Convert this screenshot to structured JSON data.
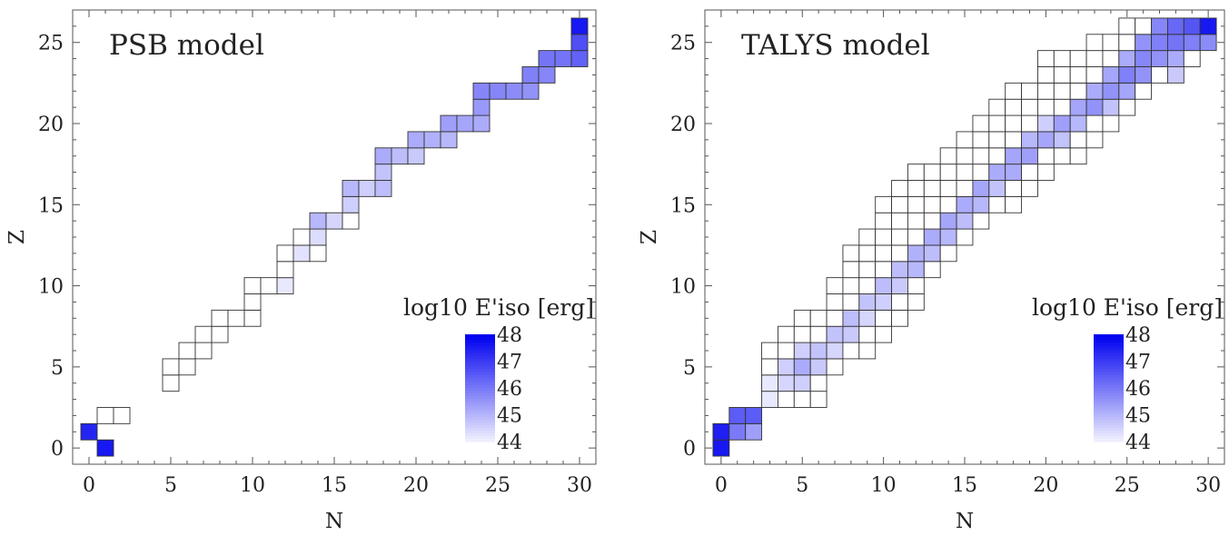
{
  "chart_data": [
    {
      "type": "heatmap",
      "title": "PSB model",
      "xlabel": "N",
      "ylabel": "Z",
      "xlim": [
        -1,
        31
      ],
      "ylim": [
        -1,
        27
      ],
      "xticks": [
        0,
        5,
        10,
        15,
        20,
        25,
        30
      ],
      "yticks": [
        0,
        5,
        10,
        15,
        20,
        25
      ],
      "legend_title": "log10 E'iso [erg]",
      "legend_placement": "bottom-right",
      "legend_ticks": [
        "48",
        "47",
        "46",
        "45",
        "44"
      ],
      "points": [
        {
          "n": 0,
          "z": 1,
          "v": 47.4
        },
        {
          "n": 1,
          "z": 0,
          "v": 47.6
        },
        {
          "n": 1,
          "z": 2,
          "v": null
        },
        {
          "n": 2,
          "z": 2,
          "v": null
        },
        {
          "n": 5,
          "z": 4,
          "v": null
        },
        {
          "n": 5,
          "z": 5,
          "v": null
        },
        {
          "n": 6,
          "z": 5,
          "v": null
        },
        {
          "n": 6,
          "z": 6,
          "v": null
        },
        {
          "n": 7,
          "z": 6,
          "v": null
        },
        {
          "n": 7,
          "z": 7,
          "v": null
        },
        {
          "n": 8,
          "z": 7,
          "v": null
        },
        {
          "n": 8,
          "z": 8,
          "v": null
        },
        {
          "n": 9,
          "z": 8,
          "v": null
        },
        {
          "n": 10,
          "z": 8,
          "v": null
        },
        {
          "n": 10,
          "z": 9,
          "v": null
        },
        {
          "n": 10,
          "z": 10,
          "v": null
        },
        {
          "n": 11,
          "z": 10,
          "v": null
        },
        {
          "n": 12,
          "z": 10,
          "v": 44.2
        },
        {
          "n": 12,
          "z": 11,
          "v": null
        },
        {
          "n": 12,
          "z": 12,
          "v": null
        },
        {
          "n": 13,
          "z": 12,
          "v": 44.3
        },
        {
          "n": 13,
          "z": 13,
          "v": null
        },
        {
          "n": 14,
          "z": 12,
          "v": null
        },
        {
          "n": 14,
          "z": 13,
          "v": 44.4
        },
        {
          "n": 14,
          "z": 14,
          "v": 45.0
        },
        {
          "n": 15,
          "z": 14,
          "v": 44.5
        },
        {
          "n": 16,
          "z": 14,
          "v": null
        },
        {
          "n": 16,
          "z": 15,
          "v": 44.6
        },
        {
          "n": 16,
          "z": 16,
          "v": 45.0
        },
        {
          "n": 17,
          "z": 16,
          "v": 44.6
        },
        {
          "n": 18,
          "z": 16,
          "v": 44.9
        },
        {
          "n": 18,
          "z": 17,
          "v": 44.8
        },
        {
          "n": 18,
          "z": 18,
          "v": 45.2
        },
        {
          "n": 19,
          "z": 18,
          "v": 44.9
        },
        {
          "n": 20,
          "z": 18,
          "v": 44.7
        },
        {
          "n": 20,
          "z": 19,
          "v": 45.2
        },
        {
          "n": 21,
          "z": 19,
          "v": 45.1
        },
        {
          "n": 22,
          "z": 19,
          "v": 45.0
        },
        {
          "n": 22,
          "z": 20,
          "v": 45.4
        },
        {
          "n": 23,
          "z": 20,
          "v": 45.3
        },
        {
          "n": 24,
          "z": 20,
          "v": 45.2
        },
        {
          "n": 24,
          "z": 21,
          "v": 45.5
        },
        {
          "n": 24,
          "z": 22,
          "v": 45.8
        },
        {
          "n": 25,
          "z": 22,
          "v": 45.8
        },
        {
          "n": 26,
          "z": 22,
          "v": 45.7
        },
        {
          "n": 27,
          "z": 22,
          "v": 45.6
        },
        {
          "n": 27,
          "z": 23,
          "v": 45.9
        },
        {
          "n": 28,
          "z": 23,
          "v": 45.8
        },
        {
          "n": 28,
          "z": 24,
          "v": 46.1
        },
        {
          "n": 29,
          "z": 24,
          "v": 46.1
        },
        {
          "n": 30,
          "z": 24,
          "v": 46.4
        },
        {
          "n": 30,
          "z": 25,
          "v": 46.7
        },
        {
          "n": 30,
          "z": 26,
          "v": 47.6
        }
      ]
    },
    {
      "type": "heatmap",
      "title": "TALYS model",
      "xlabel": "N",
      "ylabel": "Z",
      "xlim": [
        -1,
        31
      ],
      "ylim": [
        -1,
        27
      ],
      "xticks": [
        0,
        5,
        10,
        15,
        20,
        25,
        30
      ],
      "yticks": [
        0,
        5,
        10,
        15,
        20,
        25
      ],
      "legend_title": "log10 E'iso [erg]",
      "legend_placement": "bottom-right",
      "legend_ticks": [
        "48",
        "47",
        "46",
        "45",
        "44"
      ],
      "rows": [
        {
          "z": 0,
          "n_min": 0,
          "n_max": 0
        },
        {
          "z": 1,
          "n_min": 0,
          "n_max": 2
        },
        {
          "z": 2,
          "n_min": 1,
          "n_max": 2
        },
        {
          "z": 3,
          "n_min": 3,
          "n_max": 6
        },
        {
          "z": 4,
          "n_min": 3,
          "n_max": 6
        },
        {
          "z": 5,
          "n_min": 3,
          "n_max": 7
        },
        {
          "z": 6,
          "n_min": 3,
          "n_max": 9
        },
        {
          "z": 7,
          "n_min": 4,
          "n_max": 10
        },
        {
          "z": 8,
          "n_min": 5,
          "n_max": 11
        },
        {
          "z": 9,
          "n_min": 7,
          "n_max": 12
        },
        {
          "z": 10,
          "n_min": 7,
          "n_max": 12
        },
        {
          "z": 11,
          "n_min": 8,
          "n_max": 13
        },
        {
          "z": 12,
          "n_min": 8,
          "n_max": 14
        },
        {
          "z": 13,
          "n_min": 9,
          "n_max": 15
        },
        {
          "z": 14,
          "n_min": 10,
          "n_max": 16
        },
        {
          "z": 15,
          "n_min": 10,
          "n_max": 18
        },
        {
          "z": 16,
          "n_min": 11,
          "n_max": 19
        },
        {
          "z": 17,
          "n_min": 12,
          "n_max": 20
        },
        {
          "z": 18,
          "n_min": 14,
          "n_max": 22
        },
        {
          "z": 19,
          "n_min": 15,
          "n_max": 23
        },
        {
          "z": 20,
          "n_min": 16,
          "n_max": 24
        },
        {
          "z": 21,
          "n_min": 17,
          "n_max": 25
        },
        {
          "z": 22,
          "n_min": 18,
          "n_max": 26
        },
        {
          "z": 23,
          "n_min": 20,
          "n_max": 28
        },
        {
          "z": 24,
          "n_min": 20,
          "n_max": 29
        },
        {
          "z": 25,
          "n_min": 23,
          "n_max": 30
        },
        {
          "z": 26,
          "n_min": 25,
          "n_max": 30
        }
      ],
      "colored": [
        {
          "n": 0,
          "z": 0,
          "v": 47.6
        },
        {
          "n": 1,
          "z": 1,
          "v": 46.0
        },
        {
          "n": 0,
          "z": 1,
          "v": 47.5
        },
        {
          "n": 2,
          "z": 1,
          "v": 45.4
        },
        {
          "n": 1,
          "z": 2,
          "v": 46.5
        },
        {
          "n": 2,
          "z": 2,
          "v": 46.5
        },
        {
          "n": 3,
          "z": 3,
          "v": 44.2
        },
        {
          "n": 3,
          "z": 4,
          "v": 44.2
        },
        {
          "n": 4,
          "z": 4,
          "v": 44.5
        },
        {
          "n": 4,
          "z": 5,
          "v": 44.6
        },
        {
          "n": 5,
          "z": 5,
          "v": 45.2
        },
        {
          "n": 5,
          "z": 4,
          "v": 44.6
        },
        {
          "n": 6,
          "z": 5,
          "v": 44.7
        },
        {
          "n": 5,
          "z": 6,
          "v": 44.6
        },
        {
          "n": 6,
          "z": 6,
          "v": 44.8
        },
        {
          "n": 7,
          "z": 6,
          "v": 44.5
        },
        {
          "n": 7,
          "z": 7,
          "v": 44.8
        },
        {
          "n": 8,
          "z": 7,
          "v": 44.7
        },
        {
          "n": 8,
          "z": 8,
          "v": 44.9
        },
        {
          "n": 9,
          "z": 8,
          "v": 44.5
        },
        {
          "n": 9,
          "z": 9,
          "v": 44.8
        },
        {
          "n": 10,
          "z": 9,
          "v": 44.6
        },
        {
          "n": 10,
          "z": 10,
          "v": 44.9
        },
        {
          "n": 11,
          "z": 10,
          "v": 44.7
        },
        {
          "n": 11,
          "z": 11,
          "v": 44.9
        },
        {
          "n": 12,
          "z": 11,
          "v": 45.0
        },
        {
          "n": 12,
          "z": 12,
          "v": 45.1
        },
        {
          "n": 13,
          "z": 12,
          "v": 44.9
        },
        {
          "n": 13,
          "z": 13,
          "v": 45.2
        },
        {
          "n": 14,
          "z": 13,
          "v": 45.0
        },
        {
          "n": 14,
          "z": 14,
          "v": 45.3
        },
        {
          "n": 15,
          "z": 14,
          "v": 44.9
        },
        {
          "n": 15,
          "z": 15,
          "v": 45.2
        },
        {
          "n": 16,
          "z": 15,
          "v": 45.0
        },
        {
          "n": 16,
          "z": 16,
          "v": 45.3
        },
        {
          "n": 17,
          "z": 16,
          "v": 44.8
        },
        {
          "n": 17,
          "z": 17,
          "v": 45.2
        },
        {
          "n": 18,
          "z": 17,
          "v": 45.2
        },
        {
          "n": 18,
          "z": 18,
          "v": 45.3
        },
        {
          "n": 19,
          "z": 18,
          "v": 45.4
        },
        {
          "n": 19,
          "z": 19,
          "v": 45.0
        },
        {
          "n": 20,
          "z": 19,
          "v": 45.3
        },
        {
          "n": 21,
          "z": 19,
          "v": 44.8
        },
        {
          "n": 20,
          "z": 20,
          "v": 44.6
        },
        {
          "n": 21,
          "z": 20,
          "v": 45.4
        },
        {
          "n": 22,
          "z": 20,
          "v": 45.0
        },
        {
          "n": 22,
          "z": 21,
          "v": 45.3
        },
        {
          "n": 23,
          "z": 21,
          "v": 45.6
        },
        {
          "n": 24,
          "z": 21,
          "v": 44.8
        },
        {
          "n": 23,
          "z": 22,
          "v": 45.2
        },
        {
          "n": 24,
          "z": 22,
          "v": 45.6
        },
        {
          "n": 25,
          "z": 22,
          "v": 45.3
        },
        {
          "n": 24,
          "z": 23,
          "v": 45.3
        },
        {
          "n": 25,
          "z": 23,
          "v": 45.9
        },
        {
          "n": 26,
          "z": 23,
          "v": 45.6
        },
        {
          "n": 25,
          "z": 24,
          "v": 45.2
        },
        {
          "n": 26,
          "z": 24,
          "v": 45.8
        },
        {
          "n": 27,
          "z": 24,
          "v": 45.6
        },
        {
          "n": 28,
          "z": 24,
          "v": 45.2
        },
        {
          "n": 26,
          "z": 25,
          "v": 45.6
        },
        {
          "n": 27,
          "z": 25,
          "v": 45.9
        },
        {
          "n": 28,
          "z": 25,
          "v": 46.1
        },
        {
          "n": 29,
          "z": 25,
          "v": 45.9
        },
        {
          "n": 30,
          "z": 25,
          "v": 45.7
        },
        {
          "n": 27,
          "z": 26,
          "v": 45.8
        },
        {
          "n": 28,
          "z": 26,
          "v": 46.3
        },
        {
          "n": 29,
          "z": 26,
          "v": 46.6
        },
        {
          "n": 30,
          "z": 26,
          "v": 47.6
        },
        {
          "n": 30,
          "z": 24,
          "v": 44.3
        },
        {
          "n": 28,
          "z": 23,
          "v": 44.7
        }
      ]
    }
  ],
  "colors": {
    "scale_low": "#f4f4ff",
    "scale_high": "#0000f0",
    "cell_border": "#333333",
    "frame": "#555555"
  }
}
